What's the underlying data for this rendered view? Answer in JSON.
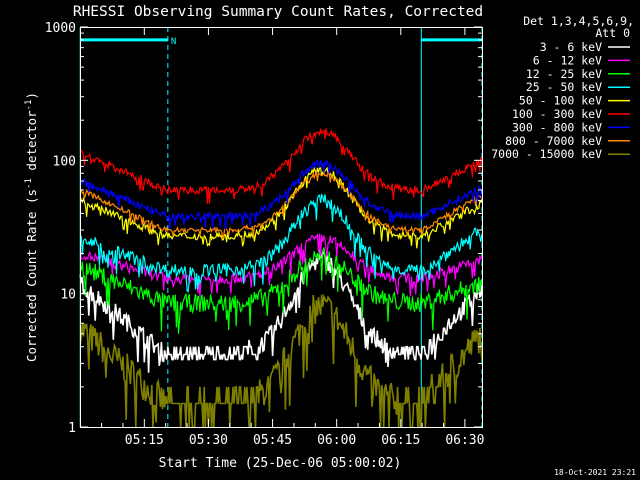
{
  "chart_data": {
    "type": "line",
    "title": "RHESSI Observing Summary Count Rates, Corrected",
    "xlabel": "Start Time (25-Dec-06 05:00:02)",
    "ylabel": "Corrected Count Rate (s",
    "ylabel_sup1": "-1",
    "ylabel_mid": " detector",
    "ylabel_sup2": "-1",
    "ylabel_end": ")",
    "yscale": "log",
    "ylim": [
      1,
      1000
    ],
    "xlim_minutes": [
      -0.05,
      94
    ],
    "x_ticks": [
      {
        "minutes": 15,
        "label": "05:15"
      },
      {
        "minutes": 30,
        "label": "05:30"
      },
      {
        "minutes": 45,
        "label": "05:45"
      },
      {
        "minutes": 60,
        "label": "06:00"
      },
      {
        "minutes": 75,
        "label": "06:15"
      },
      {
        "minutes": 90,
        "label": "06:30"
      }
    ],
    "y_ticks": [
      {
        "value": 1,
        "label": "1"
      },
      {
        "value": 10,
        "label": "10"
      },
      {
        "value": 100,
        "label": "100"
      },
      {
        "value": 1000,
        "label": "1000"
      }
    ],
    "legend_header": [
      "Det 1,3,4,5,6,9,",
      "Att 0"
    ],
    "legend_position": "right",
    "timestamp": "18-Oct-2021 23:21",
    "night_bars": [
      {
        "start_minutes": 0,
        "end_minutes": 20.5,
        "value": 800,
        "label": "N"
      },
      {
        "start_minutes": 79.8,
        "end_minutes": 94,
        "value": 800,
        "label": ""
      }
    ],
    "saa_lines_minutes": [
      0,
      20.5,
      79.8,
      94
    ],
    "series": [
      {
        "name": "3 - 6 keV",
        "color": "#ffffff",
        "min": 3.5,
        "peak": 18,
        "start": 12,
        "end": 11,
        "noise": 0.07,
        "floor": 3.2
      },
      {
        "name": "6 - 12 keV",
        "color": "#ff00ff",
        "min": 13,
        "peak": 26,
        "start": 20,
        "end": 18,
        "noise": 0.04
      },
      {
        "name": "12 - 25 keV",
        "color": "#00ff00",
        "min": 8.5,
        "peak": 19,
        "start": 16,
        "end": 12,
        "noise": 0.07
      },
      {
        "name": "25 - 50 keV",
        "color": "#00ffff",
        "min": 15,
        "peak": 50,
        "start": 26,
        "end": 30,
        "noise": 0.05
      },
      {
        "name": "50 - 100 keV",
        "color": "#ffff00",
        "min": 27,
        "peak": 85,
        "start": 50,
        "end": 48,
        "noise": 0.03
      },
      {
        "name": "100 - 300 keV",
        "color": "#ff0000",
        "min": 60,
        "peak": 165,
        "start": 115,
        "end": 100,
        "noise": 0.03
      },
      {
        "name": "300 - 800 keV",
        "color": "#0000ff",
        "min": 38,
        "peak": 95,
        "start": 70,
        "end": 62,
        "noise": 0.03
      },
      {
        "name": "800 - 7000 keV",
        "color": "#ff8c00",
        "min": 30,
        "peak": 80,
        "start": 60,
        "end": 55,
        "noise": 0.02
      },
      {
        "name": "7000 - 15000 keV",
        "color": "#808000",
        "min": 1.5,
        "peak": 8,
        "start": 5.5,
        "end": 5,
        "noise": 0.12,
        "floor": 1
      }
    ]
  }
}
